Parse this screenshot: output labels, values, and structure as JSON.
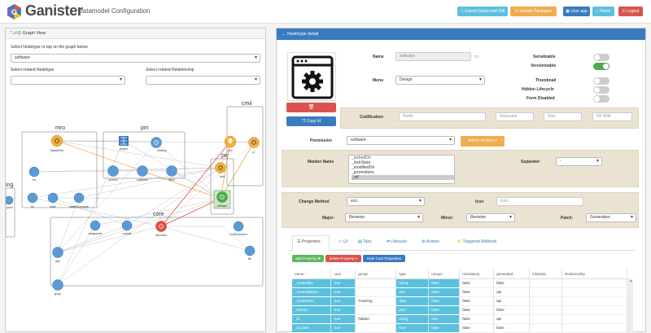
{
  "header": {
    "brand": "Ganister",
    "subtitle": "Datamodel Configuration",
    "buttons": [
      {
        "label": "Export Datamodel Diff",
        "color": "#5bc0de"
      },
      {
        "label": "Update Packages",
        "color": "#f0ad4e"
      },
      {
        "label": "User app",
        "color": "#3a7bc0"
      },
      {
        "label": "Home",
        "color": "#5bc0de"
      },
      {
        "label": "Logout",
        "color": "#d9534f"
      }
    ]
  },
  "left": {
    "title": "Graph View",
    "select_nodetype_label": "Select Nodetype or tap on the graph below",
    "select_nodetype_value": "software",
    "related_nodetype_label": "Select related Nodetype",
    "related_relationship_label": "Select related Relationship",
    "groups": [
      {
        "label": "mro"
      },
      {
        "label": "pm"
      },
      {
        "label": "cmii"
      },
      {
        "label": "pe"
      },
      {
        "label": "core"
      },
      {
        "label": "ing"
      }
    ],
    "nodes": [
      {
        "label": "RaisedPart",
        "kind": "gear-node"
      },
      {
        "label": "project",
        "kind": "grid-node"
      },
      {
        "label": "desktop",
        "kind": "gear-node"
      },
      {
        "label": "eco",
        "kind": "bulb-node"
      },
      {
        "label": "pr",
        "kind": "gear-node"
      },
      {
        "label": "ico",
        "kind": "plain-node"
      },
      {
        "label": "product",
        "kind": "plain-node"
      },
      {
        "label": "customer",
        "kind": "plain-node"
      },
      {
        "label": "items",
        "kind": "plain-node"
      },
      {
        "label": "part",
        "kind": "gear-node"
      },
      {
        "label": "software",
        "kind": "gear-node"
      },
      {
        "label": "fpl",
        "kind": "plain-node"
      },
      {
        "label": "stock",
        "kind": "plain-node"
      },
      {
        "label": "masterConceptp",
        "kind": "plain-node"
      },
      {
        "label": "assignment",
        "kind": "plain-node"
      },
      {
        "label": "contact",
        "kind": "plain-node"
      },
      {
        "label": "document",
        "kind": "gear-node"
      },
      {
        "label": "confDocument",
        "kind": "plain-node"
      },
      {
        "label": "file",
        "kind": "plain-node"
      },
      {
        "label": "user",
        "kind": "plain-node"
      },
      {
        "label": "group",
        "kind": "plain-node"
      },
      {
        "label": "queri",
        "kind": "plain-node"
      }
    ]
  },
  "right": {
    "title": "Nodetype detail",
    "name_label": "Name",
    "name_value": "software",
    "menu_label": "Menu",
    "menu_value": "Design",
    "serializable_label": "Serializable",
    "versionnable_label": "Versionnable",
    "thumbnail_label": "Thumbnail",
    "hidden_lifecycle_label": "Hidden Lifecycle",
    "form_disabled_label": "Form Disabled",
    "copy_id_label": "Copy Id",
    "codification_label": "Codification",
    "prefix_placeholder": "Prefix",
    "separator_placeholder": "Separator",
    "size_placeholder": "Size",
    "fillwith_placeholder": "Fill With",
    "permission_label": "Permission",
    "permission_value": "software",
    "admin_actions_label": "Admin Actions ▾",
    "maiden_name_label": "Maiden Name",
    "maiden_items": [
      "_lockedOn",
      "_lockState",
      "_modifiedOn",
      "_promotions",
      "_ref"
    ],
    "separator_label": "Separator",
    "separator_value": "-",
    "change_method_label": "Change Method",
    "change_method_value": "eco",
    "icon_label": "Icon",
    "icon_placeholder": "icon",
    "major_label": "Major:",
    "major_value": "Revision",
    "minor_label": "Minor:",
    "minor_value": "Revision",
    "patch_label": "Patch:",
    "patch_value": "Generation",
    "tabs": [
      "Properties",
      "UI",
      "Tabs",
      "Lifecycle",
      "Actions",
      "Triggered Methods"
    ],
    "add_property_label": "add Property ✚",
    "delete_property_label": "delete Property ━",
    "hide_core_label": "Hide Core Properties",
    "table": {
      "columns": [
        "name ↑",
        "core",
        "group",
        "type",
        "unique",
        "mandatory",
        "generated",
        "infoData",
        "Relationship"
      ],
      "rows": [
        [
          "_createdBy",
          "true",
          "",
          "string",
          "false",
          "false",
          "false",
          "",
          ""
        ],
        [
          "_createdByNa...",
          "true",
          "",
          "text",
          "false",
          "false",
          "api",
          "",
          ""
        ],
        [
          "_createdOn",
          "true",
          "Tracking",
          "date",
          "false",
          "false",
          "api",
          "",
          ""
        ],
        [
          "_history",
          "true",
          "",
          "json",
          "false",
          "false",
          "false",
          "",
          ""
        ],
        [
          "_id",
          "true",
          "hidden",
          "string",
          "true",
          "false",
          "api",
          "",
          ""
        ],
        [
          "_isLatest",
          "true",
          "",
          "bool",
          "false",
          "false",
          "false",
          "",
          ""
        ]
      ]
    }
  }
}
